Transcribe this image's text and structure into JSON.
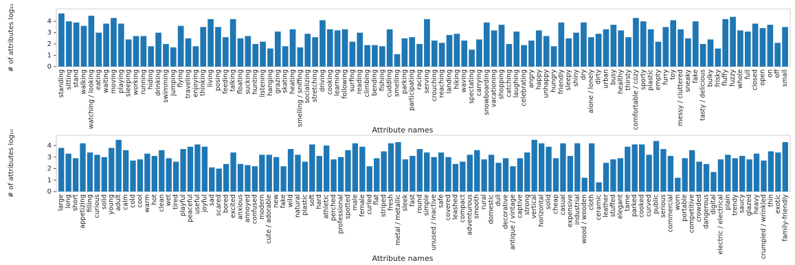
{
  "chart_data": [
    {
      "type": "bar",
      "x_label": "Attribute names",
      "y_label": "# of attributes log₁₀",
      "color": "#1f77b4",
      "ylim": [
        0,
        5.1
      ],
      "yticks": [
        0,
        1,
        2,
        3,
        4
      ],
      "grid": false,
      "categories": [
        "standing",
        "sitting",
        "stand",
        "walking",
        "watching / looking",
        "eating",
        "waiting",
        "moving",
        "playing",
        "sleeping",
        "working",
        "running",
        "hiding",
        "drinking",
        "swimming",
        "jumping",
        "flying",
        "traveling",
        "enjoying",
        "thinking",
        "living",
        "posing",
        "feeding",
        "talking",
        "floating",
        "sucking",
        "hunting",
        "listening",
        "hanging",
        "grazing",
        "skating",
        "heating",
        "smelling / sniffing",
        "socializing",
        "stretching",
        "driving",
        "cooking",
        "learning",
        "following",
        "surfing",
        "reading",
        "climbing",
        "bending",
        "fishing",
        "cuddling",
        "smelling",
        "parking",
        "participating",
        "racing",
        "serving",
        "crouching",
        "reaching",
        "landing",
        "hiking",
        "waving",
        "spectating",
        "carrying",
        "snowboarding",
        "vacationing",
        "shopping",
        "catching",
        "laughing",
        "celebrating",
        "angry",
        "happy",
        "unhappy",
        "hungry",
        "friendly",
        "sleepy",
        "shiny",
        "dry",
        "alone / lonely",
        "dirty",
        "urban",
        "busy",
        "healthy",
        "thirsty",
        "comfortable / cozy",
        "sporty",
        "plastic",
        "empty",
        "furry",
        "toy",
        "messy / cluttered",
        "sneaky",
        "fake",
        "tasty / delicious",
        "bulky",
        "frisky",
        "fluffy",
        "fuzzy",
        "whole",
        "full",
        "closed",
        "open",
        "on",
        "off",
        "small"
      ],
      "values": [
        4.7,
        4.0,
        3.9,
        3.6,
        4.5,
        3.0,
        3.8,
        4.3,
        3.8,
        2.4,
        2.7,
        2.7,
        1.8,
        3.0,
        2.0,
        1.7,
        3.6,
        2.5,
        1.8,
        3.5,
        4.2,
        3.5,
        2.6,
        4.2,
        2.5,
        2.7,
        2.0,
        2.2,
        1.6,
        3.1,
        1.8,
        3.3,
        1.7,
        2.9,
        2.6,
        4.1,
        3.3,
        3.2,
        3.3,
        2.2,
        3.0,
        1.9,
        1.9,
        1.8,
        3.3,
        1.1,
        2.5,
        2.6,
        2.0,
        4.2,
        2.3,
        2.1,
        2.8,
        2.9,
        2.3,
        1.5,
        2.4,
        3.9,
        3.2,
        3.7,
        2.0,
        3.1,
        1.9,
        2.3,
        3.2,
        2.7,
        1.8,
        3.9,
        2.5,
        3.0,
        3.9,
        2.6,
        2.9,
        3.3,
        3.7,
        3.2,
        2.6,
        4.3,
        4.0,
        3.3,
        2.2,
        3.5,
        4.1,
        3.3,
        2.5,
        4.0,
        2.0,
        2.4,
        1.6,
        4.2,
        4.4,
        3.2,
        3.1,
        3.8,
        3.4,
        3.7,
        2.1,
        3.5
      ]
    },
    {
      "type": "bar",
      "x_label": "Attribute names",
      "y_label": "# of attributes log₁₀",
      "color": "#1f77b4",
      "ylim": [
        0,
        4.9
      ],
      "yticks": [
        0,
        1,
        2,
        3,
        4
      ],
      "grid": false,
      "categories": [
        "large",
        "long",
        "short",
        "appetizing",
        "filling",
        "curious",
        "solid",
        "young",
        "adult",
        "calm",
        "cold",
        "cool",
        "warm",
        "hot",
        "clean",
        "wet",
        "tired",
        "playful",
        "peaceful",
        "useful",
        "joyful",
        "sad",
        "scared",
        "bored",
        "excited",
        "anxious",
        "annoyed",
        "confused",
        "modern",
        "cute / adorable",
        "new",
        "fake",
        "wild",
        "natural",
        "plastic",
        "soft",
        "hard",
        "athletic",
        "perched",
        "professional",
        "spotted",
        "male",
        "female",
        "curled",
        "flat",
        "striped",
        "fresh",
        "metal / metallic",
        "sleek",
        "fast",
        "round",
        "simple",
        "unused / inactive",
        "safe",
        "covered",
        "leashed",
        "compact",
        "adventurous",
        "smooth",
        "rural",
        "domestic",
        "dull",
        "decorative",
        "antique / vintage",
        "captive",
        "strong",
        "vertical",
        "horizontal",
        "solid",
        "cheap",
        "casual",
        "expensive",
        "industrial",
        "wood / wooden",
        "cloth",
        "ceramic",
        "leather",
        "stuffed",
        "elegant",
        "tame",
        "parked",
        "cooked",
        "curved",
        "public",
        "serious",
        "commercial",
        "worn",
        "portable",
        "competitive",
        "crowded",
        "dangerous",
        "digital",
        "electric / electrical",
        "plain",
        "trendy",
        "saucy",
        "glazed",
        "heavy",
        "crumpled / wrinkled",
        "thin",
        "exotic",
        "family-friendly"
      ],
      "values": [
        3.8,
        3.3,
        2.9,
        4.2,
        3.4,
        3.2,
        3.0,
        3.8,
        4.5,
        3.6,
        2.7,
        2.8,
        3.3,
        3.1,
        3.6,
        2.9,
        2.6,
        3.7,
        3.9,
        4.1,
        3.9,
        2.1,
        2.0,
        2.4,
        3.4,
        2.4,
        2.3,
        2.2,
        3.2,
        3.2,
        3.0,
        2.2,
        3.7,
        3.2,
        2.6,
        4.1,
        3.1,
        4.0,
        2.8,
        3.0,
        3.6,
        4.2,
        3.9,
        2.2,
        2.9,
        3.5,
        4.2,
        4.3,
        2.8,
        3.1,
        3.7,
        3.4,
        3.0,
        3.4,
        3.0,
        2.4,
        2.6,
        3.2,
        3.6,
        2.8,
        3.2,
        2.5,
        2.9,
        2.2,
        2.9,
        3.4,
        4.5,
        4.2,
        3.9,
        2.9,
        4.2,
        3.1,
        4.2,
        1.2,
        4.2,
        0.8,
        2.5,
        2.8,
        2.9,
        3.9,
        4.1,
        4.1,
        3.2,
        4.4,
        3.7,
        3.1,
        1.2,
        2.9,
        3.6,
        2.6,
        2.4,
        1.7,
        2.8,
        3.2,
        2.9,
        3.1,
        2.8,
        3.3,
        2.7,
        3.5,
        3.4,
        4.3
      ]
    }
  ]
}
